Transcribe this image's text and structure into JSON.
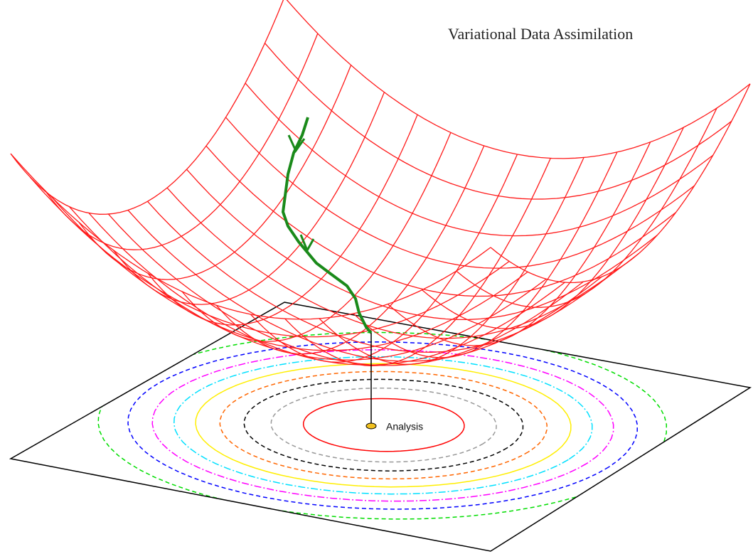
{
  "header": {
    "title": "Variational Data Assimilation"
  },
  "annotations": [
    {
      "label": "Analysis"
    }
  ]
}
